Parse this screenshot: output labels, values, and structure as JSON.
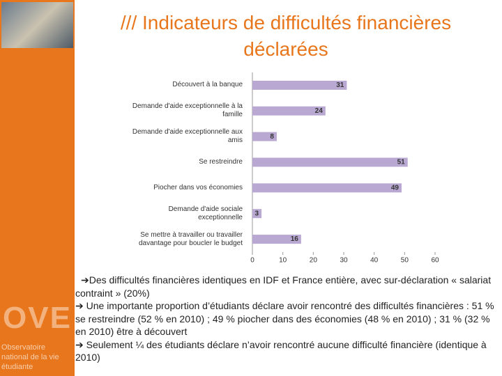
{
  "slide_title": "/// Indicateurs de difficultés financières déclarées",
  "chart_data": {
    "type": "hbar",
    "categories": [
      "Découvert à la banque",
      "Demande d'aide exceptionnelle à la famille",
      "Demande d'aide exceptionnelle aux amis",
      "Se restreindre",
      "Piocher dans vos économies",
      "Demande d'aide sociale exceptionnelle",
      "Se mettre à travailler ou travailler davantage pour boucler le budget"
    ],
    "values": [
      31,
      24,
      8,
      51,
      49,
      3,
      16
    ],
    "color": "#b8a8d2",
    "xlim": [
      0,
      60
    ],
    "xticks": [
      0,
      10,
      20,
      30,
      40,
      50,
      60
    ]
  },
  "bullets": [
    "➔Des difficultés financières identiques en IDF et France entière, avec sur-déclaration « salariat contraint » (20%)",
    "➔ Une importante proportion d’étudiants déclare avoir rencontré des difficultés financières : 51 % se restreindre (52 % en 2010) ; 49 % piocher dans des économies (48 % en 2010) ; 31 % (32 % en 2010) être à découvert",
    "➔ Seulement ¼ des étudiants déclare n’avoir rencontré aucune difficulté financière (identique à 2010)"
  ],
  "logo": {
    "mark": "OVE",
    "text": "Observatoire national de la vie étudiante"
  }
}
